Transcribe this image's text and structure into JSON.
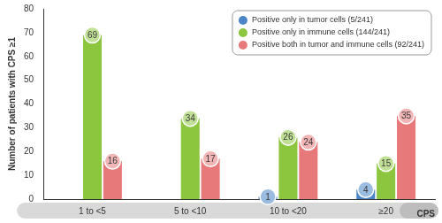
{
  "chart_data": {
    "type": "bar",
    "y_label": "Number of patients with CPS ≥1",
    "x_label": "CPS",
    "categories": [
      "1 to <5",
      "5 to <10",
      "10 to <20",
      "≥20"
    ],
    "series": [
      {
        "name": "Positive only in tumor cells (5/241)",
        "color": "#4a86c8",
        "values": [
          null,
          null,
          1,
          4
        ]
      },
      {
        "name": "Positive only in immune cells (144/241)",
        "color": "#8cc63f",
        "values": [
          69,
          34,
          26,
          15
        ]
      },
      {
        "name": "Positive both in tumor and immune cells (92/241)",
        "color": "#e8797b",
        "values": [
          16,
          17,
          24,
          35
        ]
      }
    ],
    "ylim": [
      0,
      80
    ],
    "yticks": [
      0,
      10,
      20,
      30,
      40,
      50,
      60,
      70,
      80
    ],
    "grid": false,
    "legend": "top-right",
    "data_labels": true
  }
}
